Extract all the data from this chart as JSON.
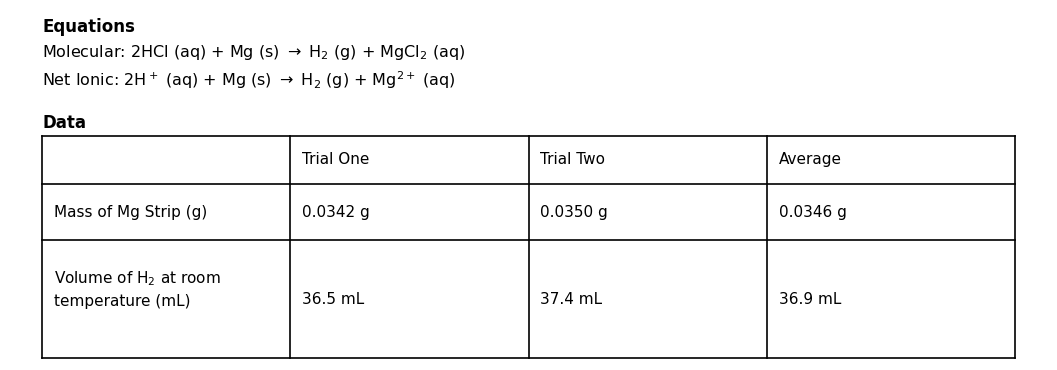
{
  "title": "Equations",
  "data_title": "Data",
  "col_headers": [
    "",
    "Trial One",
    "Trial Two",
    "Average"
  ],
  "row_labels": [
    "Mass of Mg Strip (g)",
    "Volume of H₂ at room\ntemperature (mL)"
  ],
  "table_data": [
    [
      "0.0342 g",
      "0.0350 g",
      "0.0346 g"
    ],
    [
      "36.5 mL",
      "37.4 mL",
      "36.9 mL"
    ]
  ],
  "bg_color": "#ffffff",
  "text_color": "#000000",
  "font_size": 11.5,
  "title_font_size": 12,
  "table_font_size": 11
}
